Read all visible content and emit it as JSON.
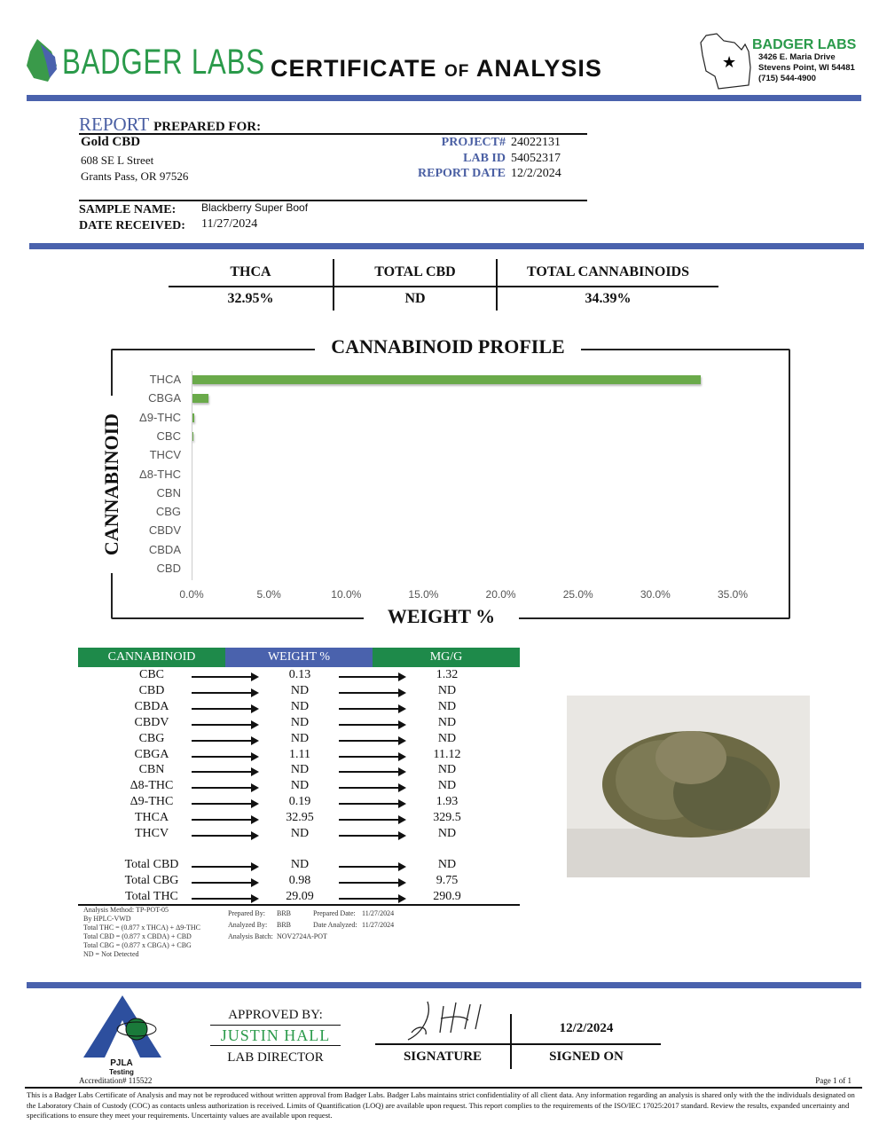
{
  "header": {
    "brand": "BADGER LABS",
    "title_main1": "CERTIFICATE ",
    "title_of": "OF",
    "title_main2": " ANALYSIS",
    "address": {
      "name": "BADGER LABS",
      "street": "3426 E. Maria Drive",
      "city": "Stevens Point, WI 54481",
      "phone": "(715) 544-4900"
    }
  },
  "client": {
    "report_label": "REPORT",
    "prepared_for": "PREPARED FOR:",
    "name": "Gold CBD",
    "street": "608 SE L Street",
    "city": "Grants Pass, OR 97526",
    "project_label": "PROJECT#",
    "project": "24022131",
    "lab_id_label": "LAB ID",
    "lab_id": "54052317",
    "report_date_label": "REPORT DATE",
    "report_date": "12/2/2024",
    "sample_label": "SAMPLE NAME:",
    "sample": "Blackberry Super Boof",
    "received_label": "DATE RECEIVED:",
    "received": "11/27/2024"
  },
  "summary": [
    {
      "label": "THCA",
      "value": "32.95%"
    },
    {
      "label": "TOTAL CBD",
      "value": "ND"
    },
    {
      "label": "TOTAL CANNABINOIDS",
      "value": "34.39%"
    }
  ],
  "chart_data": {
    "type": "bar",
    "orientation": "horizontal",
    "title": "CANNABINOID PROFILE",
    "xlabel": "WEIGHT %",
    "ylabel": "CANNABINOID",
    "categories": [
      "THCA",
      "CBGA",
      "Δ9-THC",
      "CBC",
      "THCV",
      "Δ8-THC",
      "CBN",
      "CBG",
      "CBDV",
      "CBDA",
      "CBD"
    ],
    "values": [
      32.95,
      1.11,
      0.19,
      0.13,
      0,
      0,
      0,
      0,
      0,
      0,
      0
    ],
    "xticks": [
      "0.0%",
      "5.0%",
      "10.0%",
      "15.0%",
      "20.0%",
      "25.0%",
      "30.0%",
      "35.0%"
    ],
    "xlim": [
      0,
      35
    ],
    "color": "#6aaa4a"
  },
  "table": {
    "headers": [
      "CANNABINOID",
      "WEIGHT %",
      "MG/G"
    ],
    "header_colors": [
      "#1e8a4a",
      "#4a62ad",
      "#1e8a4a"
    ],
    "rows": [
      [
        "CBC",
        "0.13",
        "1.32"
      ],
      [
        "CBD",
        "ND",
        "ND"
      ],
      [
        "CBDA",
        "ND",
        "ND"
      ],
      [
        "CBDV",
        "ND",
        "ND"
      ],
      [
        "CBG",
        "ND",
        "ND"
      ],
      [
        "CBGA",
        "1.11",
        "11.12"
      ],
      [
        "CBN",
        "ND",
        "ND"
      ],
      [
        "Δ8-THC",
        "ND",
        "ND"
      ],
      [
        "Δ9-THC",
        "0.19",
        "1.93"
      ],
      [
        "THCA",
        "32.95",
        "329.5"
      ],
      [
        "THCV",
        "ND",
        "ND"
      ]
    ],
    "totals": [
      [
        "Total CBD",
        "ND",
        "ND"
      ],
      [
        "Total CBG",
        "0.98",
        "9.75"
      ],
      [
        "Total THC",
        "29.09",
        "290.9"
      ]
    ]
  },
  "notes": {
    "method": "Analysis Method: TP-POT-05",
    "by": "By HPLC-VWD",
    "thc": "Total THC = (0.877 x  THCA) + Δ9-THC",
    "cbd": "Total CBD = (0.877 x  CBDA) + CBD",
    "cbg": "Total CBG = (0.877 x  CBGA) + CBG",
    "nd": "ND = Not Detected",
    "prepared_by_label": "Prepared By:",
    "prepared_by": "BRB",
    "analyzed_by_label": "Analyzed By:",
    "analyzed_by": "BRB",
    "batch_label": "Analysis Batch:",
    "batch": "NOV2724A-POT",
    "prepared_date_label": "Prepared Date:",
    "prepared_date": "11/27/2024",
    "analyzed_date_label": "Date Analyzed:",
    "analyzed_date": "11/27/2024"
  },
  "footer": {
    "pjla": "PJLA",
    "testing": "Testing",
    "accreditation": "Accreditation# 115522",
    "approved_by": "APPROVED BY:",
    "director": "JUSTIN HALL",
    "director_title": "LAB DIRECTOR",
    "signature_label": "SIGNATURE",
    "signed_date": "12/2/2024",
    "signed_on": "SIGNED ON",
    "page": "Page 1 of 1",
    "disclaimer": "This is a Badger Labs Certificate of Analysis and may not be reproduced without written approval from Badger Labs. Badger Labs maintains strict confidentiality of all client data. Any information regarding an analysis is shared only with the the individuals designated on the Laboratory Chain of Custody (COC) as contacts unless authorization is received. Limits of Quantification (LOQ) are available upon request. This report complies to the requirements of the ISO/IEC 17025:2017 standard. Review the results, expanded uncertainty and specifications to ensure they meet your requirements. Uncertainty values are available upon request."
  }
}
